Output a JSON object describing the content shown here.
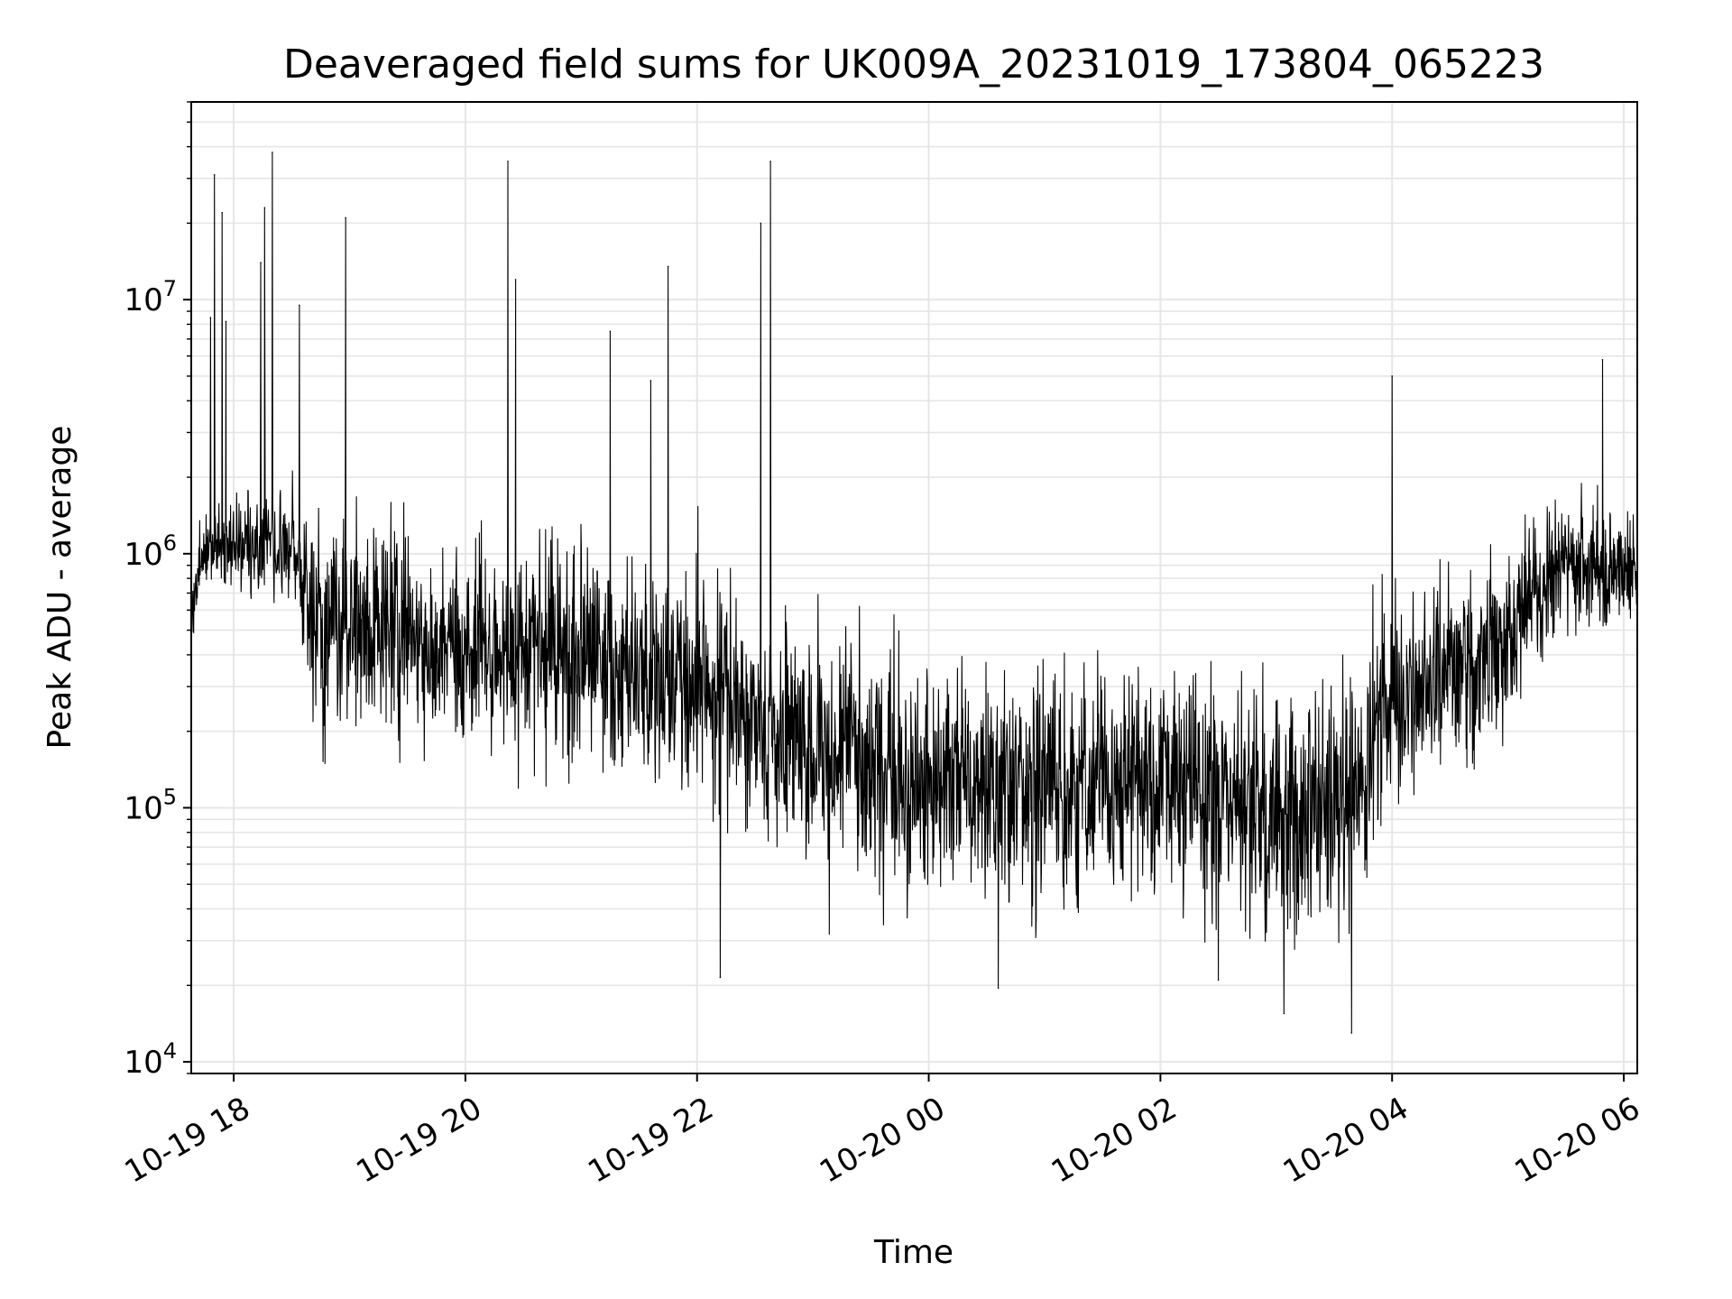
{
  "chart_data": {
    "type": "line",
    "title": "Deaveraged field sums for UK009A_20231019_173804_065223",
    "xlabel": "Time",
    "ylabel": "Peak ADU - average",
    "yscale": "log",
    "xlim": [
      "2023-10-19 17:38",
      "2023-10-20 06:07"
    ],
    "ylim": [
      9000,
      60000000
    ],
    "grid": true,
    "line_color": "#000000",
    "grid_color": "#e6e6e6",
    "x_ticks": [
      {
        "value": "2023-10-19 18:00",
        "label": "10-19 18"
      },
      {
        "value": "2023-10-19 20:00",
        "label": "10-19 20"
      },
      {
        "value": "2023-10-19 22:00",
        "label": "10-19 22"
      },
      {
        "value": "2023-10-20 00:00",
        "label": "10-20 00"
      },
      {
        "value": "2023-10-20 02:00",
        "label": "10-20 02"
      },
      {
        "value": "2023-10-20 04:00",
        "label": "10-20 04"
      },
      {
        "value": "2023-10-20 06:00",
        "label": "10-20 06"
      }
    ],
    "y_ticks": [
      {
        "value": 10000,
        "base": "10",
        "exp": "4"
      },
      {
        "value": 100000,
        "base": "10",
        "exp": "5"
      },
      {
        "value": 1000000,
        "base": "10",
        "exp": "6"
      },
      {
        "value": 10000000,
        "base": "10",
        "exp": "7"
      }
    ],
    "trend": [
      {
        "t": "2023-10-19 17:38",
        "median": 550000,
        "spread": 1.6
      },
      {
        "t": "2023-10-19 17:45",
        "median": 1100000,
        "spread": 1.6
      },
      {
        "t": "2023-10-19 18:30",
        "median": 1050000,
        "spread": 1.9
      },
      {
        "t": "2023-10-19 18:40",
        "median": 550000,
        "spread": 3.2
      },
      {
        "t": "2023-10-19 20:00",
        "median": 420000,
        "spread": 3.2
      },
      {
        "t": "2023-10-19 21:00",
        "median": 400000,
        "spread": 3.2
      },
      {
        "t": "2023-10-19 22:00",
        "median": 300000,
        "spread": 3.4
      },
      {
        "t": "2023-10-19 23:00",
        "median": 170000,
        "spread": 3.5
      },
      {
        "t": "2023-10-20 00:00",
        "median": 120000,
        "spread": 3.6
      },
      {
        "t": "2023-10-20 01:00",
        "median": 120000,
        "spread": 3.8
      },
      {
        "t": "2023-10-20 02:00",
        "median": 130000,
        "spread": 3.7
      },
      {
        "t": "2023-10-20 03:00",
        "median": 90000,
        "spread": 3.8
      },
      {
        "t": "2023-10-20 03:30",
        "median": 90000,
        "spread": 4.0
      },
      {
        "t": "2023-10-20 04:00",
        "median": 250000,
        "spread": 3.5
      },
      {
        "t": "2023-10-20 05:00",
        "median": 450000,
        "spread": 3.0
      },
      {
        "t": "2023-10-20 05:30",
        "median": 1000000,
        "spread": 2.0
      },
      {
        "t": "2023-10-20 06:07",
        "median": 800000,
        "spread": 2.0
      }
    ],
    "spikes": [
      {
        "t": "2023-10-19 17:50",
        "value": 31000000
      },
      {
        "t": "2023-10-19 17:54",
        "value": 22000000
      },
      {
        "t": "2023-10-19 17:48",
        "value": 8500000
      },
      {
        "t": "2023-10-19 17:56",
        "value": 8200000
      },
      {
        "t": "2023-10-19 18:14",
        "value": 14000000
      },
      {
        "t": "2023-10-19 18:16",
        "value": 23000000
      },
      {
        "t": "2023-10-19 18:20",
        "value": 38000000
      },
      {
        "t": "2023-10-19 18:34",
        "value": 9500000
      },
      {
        "t": "2023-10-19 18:58",
        "value": 21000000
      },
      {
        "t": "2023-10-19 20:22",
        "value": 35000000
      },
      {
        "t": "2023-10-19 20:26",
        "value": 12000000
      },
      {
        "t": "2023-10-19 21:15",
        "value": 7500000
      },
      {
        "t": "2023-10-19 21:36",
        "value": 4800000
      },
      {
        "t": "2023-10-19 21:45",
        "value": 13500000
      },
      {
        "t": "2023-10-19 22:33",
        "value": 20000000
      },
      {
        "t": "2023-10-19 22:38",
        "value": 35000000
      },
      {
        "t": "2023-10-20 04:00",
        "value": 5000000
      },
      {
        "t": "2023-10-20 05:49",
        "value": 5800000
      }
    ],
    "dips": [
      {
        "t": "2023-10-20 03:04",
        "value": 15500
      },
      {
        "t": "2023-10-20 03:39",
        "value": 13000
      },
      {
        "t": "2023-10-20 00:36",
        "value": 19500
      },
      {
        "t": "2023-10-20 02:30",
        "value": 21000
      },
      {
        "t": "2023-10-19 22:12",
        "value": 21500
      }
    ]
  }
}
